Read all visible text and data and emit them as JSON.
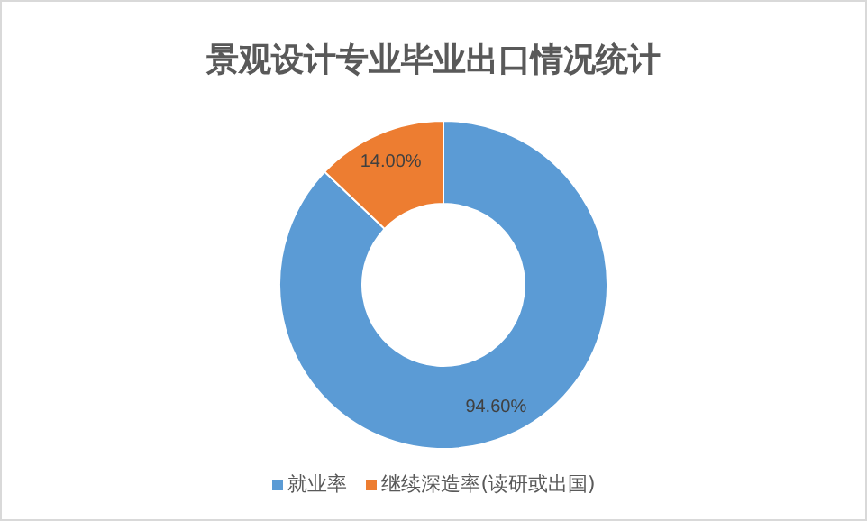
{
  "chart_data": {
    "type": "donut",
    "title": "景观设计专业毕业出口情况统计",
    "categories": [
      "就业率",
      "继续深造率(读研或出国)"
    ],
    "values": [
      94.6,
      14.0
    ],
    "colors": [
      "#5b9bd5",
      "#ed7d31"
    ],
    "value_labels": [
      "94.60%",
      "14.00%"
    ],
    "legend": "bottom"
  }
}
